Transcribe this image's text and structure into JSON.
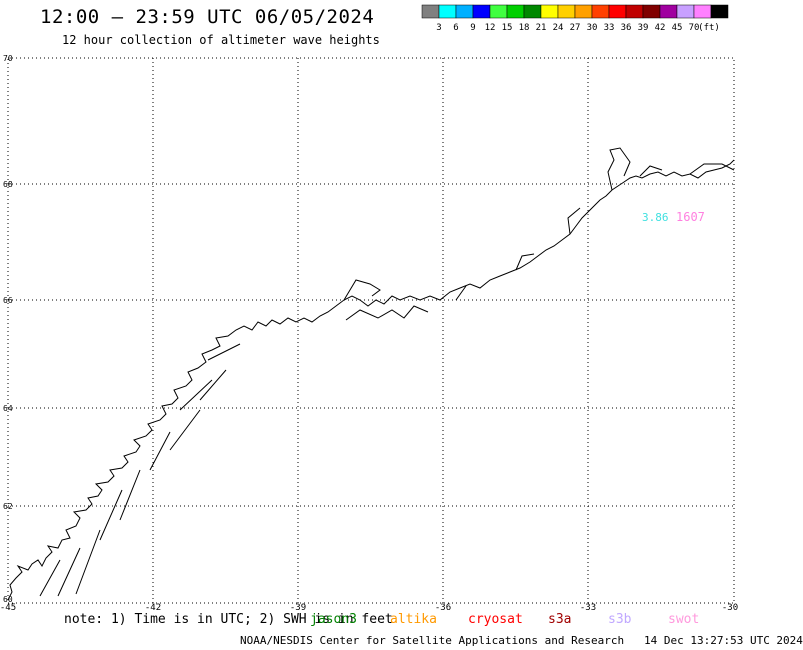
{
  "header": {
    "title": "12:00 — 23:59 UTC 06/05/2024",
    "subtitle": "12 hour collection of altimeter wave heights"
  },
  "colorbar": {
    "unit": "(ft)",
    "colors": [
      "#808080",
      "#00ffff",
      "#00b0ff",
      "#0000ff",
      "#40ff40",
      "#00d000",
      "#008800",
      "#ffff00",
      "#ffd000",
      "#ffa000",
      "#ff4000",
      "#ff0000",
      "#c00000",
      "#800000",
      "#a000a0",
      "#c8a0ff",
      "#ff80ff",
      "#000000"
    ],
    "labels": [
      "3",
      "6",
      "9",
      "12",
      "15",
      "18",
      "21",
      "24",
      "27",
      "30",
      "33",
      "36",
      "39",
      "42",
      "45",
      "70"
    ]
  },
  "map": {
    "lat_labels": [
      "70",
      "68",
      "66",
      "64",
      "62",
      "60"
    ],
    "lon_labels": [
      "-45",
      "-42",
      "-39",
      "-36",
      "-33",
      "-30"
    ],
    "observations": [
      {
        "text": "3.86",
        "color": "#40e0e0"
      },
      {
        "text": "1607",
        "color": "#ff80e0"
      }
    ]
  },
  "footer": {
    "note": "note: 1) Time is in UTC; 2) SWH is in feet",
    "satellites": [
      {
        "name": "jason3",
        "color": "#008000"
      },
      {
        "name": "altika",
        "color": "#ff9900"
      },
      {
        "name": "cryosat",
        "color": "#ff0000"
      },
      {
        "name": "s3a",
        "color": "#a00000"
      },
      {
        "name": "s3b",
        "color": "#c0a8ff"
      },
      {
        "name": "swot",
        "color": "#ff99dd"
      }
    ],
    "credit": "NOAA/NESDIS Center for Satellite Applications and Research",
    "timestamp": "14 Dec 13:27:53 UTC 2024"
  }
}
